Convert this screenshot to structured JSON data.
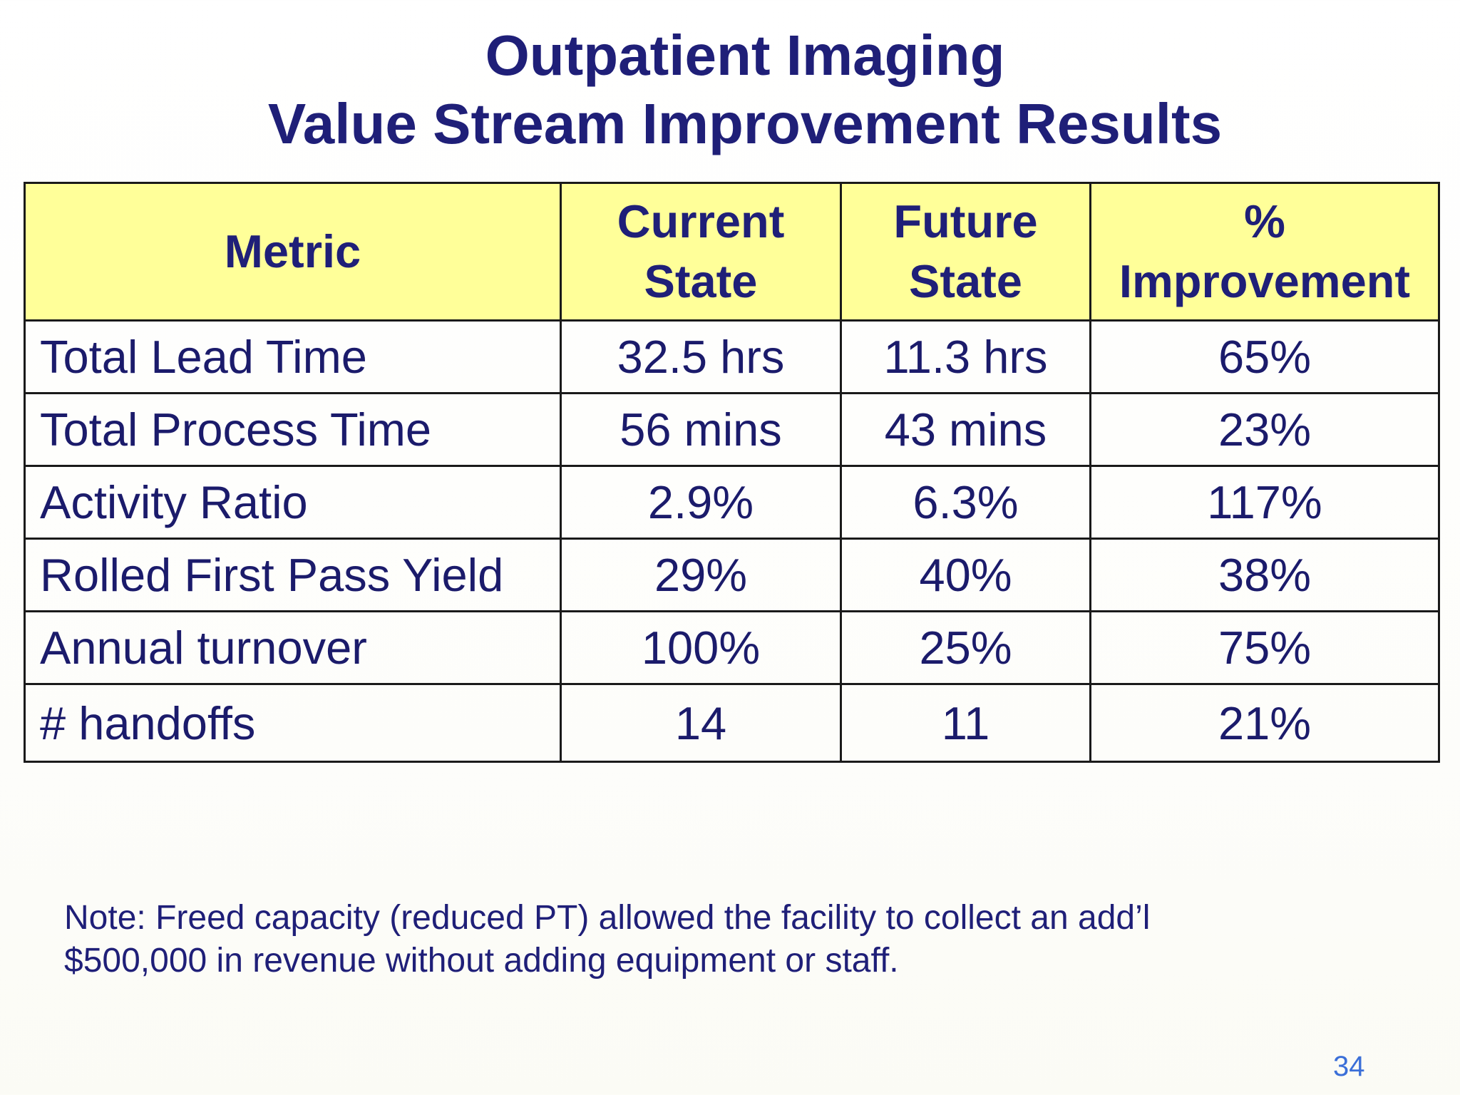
{
  "title": {
    "line1": "Outpatient Imaging",
    "line2": "Value Stream Improvement Results"
  },
  "table": {
    "headers": {
      "metric": "Metric",
      "current_line1": "Current",
      "current_line2": "State",
      "future_line1": "Future",
      "future_line2": "State",
      "improvement_line1": "%",
      "improvement_line2": "Improvement"
    },
    "rows": [
      {
        "metric": "Total Lead Time",
        "current": "32.5 hrs",
        "future": "11.3 hrs",
        "improvement": "65%"
      },
      {
        "metric": "Total Process Time",
        "current": "56 mins",
        "future": "43 mins",
        "improvement": "23%"
      },
      {
        "metric": "Activity Ratio",
        "current": "2.9%",
        "future": "6.3%",
        "improvement": "117%"
      },
      {
        "metric": "Rolled First Pass Yield",
        "current": "29%",
        "future": "40%",
        "improvement": "38%"
      },
      {
        "metric": "Annual turnover",
        "current": "100%",
        "future": "25%",
        "improvement": "75%"
      },
      {
        "metric": "# handoffs",
        "current": "14",
        "future": "11",
        "improvement": "21%"
      }
    ]
  },
  "note": {
    "line1": "Note: Freed capacity (reduced PT) allowed the facility to collect an add’l",
    "line2": "$500,000 in revenue without adding equipment or staff."
  },
  "page_number": "34",
  "colors": {
    "title": "#1f1f78",
    "header_fill": "#ffff99",
    "page_number": "#3b6fd8"
  }
}
